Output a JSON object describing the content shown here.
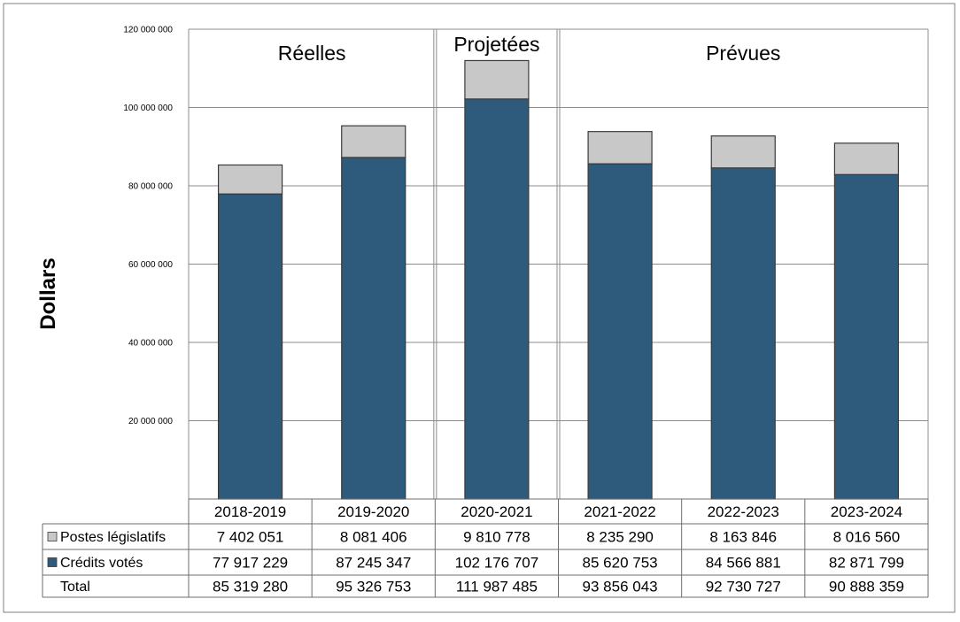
{
  "chart_data": {
    "type": "bar",
    "stacked": true,
    "ylabel": "Dollars",
    "ylim": [
      0,
      120000000
    ],
    "yticks": [
      {
        "value": 20000000,
        "label": "20 000 000"
      },
      {
        "value": 40000000,
        "label": "40 000 000"
      },
      {
        "value": 60000000,
        "label": "60 000 000"
      },
      {
        "value": 80000000,
        "label": "80 000 000"
      },
      {
        "value": 100000000,
        "label": "100 000 000"
      },
      {
        "value": 120000000,
        "label": "120 000 000"
      }
    ],
    "grid": true,
    "categories": [
      "2018-2019",
      "2019-2020",
      "2020-2021",
      "2021-2022",
      "2022-2023",
      "2023-2024"
    ],
    "sections": [
      {
        "label": "Réelles",
        "count": 2
      },
      {
        "label": "Projetées",
        "count": 1
      },
      {
        "label": "Prévues",
        "count": 3
      }
    ],
    "series": [
      {
        "name": "Crédits votés",
        "color": "#2e5b7b",
        "values": [
          77917229,
          87245347,
          102176707,
          85620753,
          84566881,
          82871799
        ],
        "labels": [
          "77 917 229",
          "87 245 347",
          "102 176 707",
          "85 620 753",
          "84 566 881",
          "82 871 799"
        ]
      },
      {
        "name": "Postes législatifs",
        "color": "#c8c8c8",
        "values": [
          7402051,
          8081406,
          9810778,
          8235290,
          8163846,
          8016560
        ],
        "labels": [
          "7 402 051",
          "8 081 406",
          "9 810 778",
          "8 235 290",
          "8 163 846",
          "8 016 560"
        ]
      }
    ],
    "totals": {
      "name": "Total",
      "values": [
        85319280,
        95326753,
        111987485,
        93856043,
        92730727,
        90888359
      ],
      "labels": [
        "85 319 280",
        "95 326 753",
        "111 987 485",
        "93 856 043",
        "92 730 727",
        "90 888 359"
      ]
    }
  }
}
